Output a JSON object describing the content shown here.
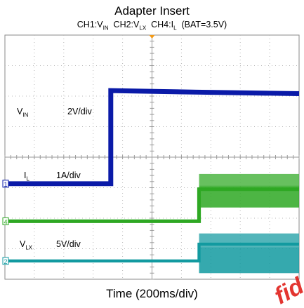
{
  "title": "Adapter Insert",
  "subtitle": {
    "ch1": "CH1:V",
    "ch1_sub": "IN",
    "ch2": "CH2:V",
    "ch2_sub": "LX",
    "ch4": "CH4:I",
    "ch4_sub": "L",
    "bat": "(BAT=3.5V)"
  },
  "xlabel": "Time (200ms/div)",
  "watermark": "fid",
  "channels": {
    "vin": {
      "name": "V",
      "sub": "IN",
      "scale": "2V/div",
      "marker": "1",
      "color": "#0a1aa8"
    },
    "il": {
      "name": "I",
      "sub": "L",
      "scale": "1A/div",
      "marker": "4",
      "color": "#2ea823"
    },
    "vlx": {
      "name": "V",
      "sub": "LX",
      "scale": "5V/div",
      "marker": "2",
      "color": "#129aa0"
    }
  },
  "chart_data": {
    "type": "line",
    "x_unit": "div",
    "x_divisions": 10,
    "y_divisions": 8,
    "grid": true,
    "series": [
      {
        "name": "VIN",
        "color": "#0a1aa8",
        "scale": "2V/div",
        "points": [
          [
            0,
            0
          ],
          [
            3.6,
            0
          ],
          [
            3.6,
            3.05
          ],
          [
            6.5,
            3.0
          ],
          [
            10,
            2.95
          ]
        ],
        "noise": 0.08
      },
      {
        "name": "IL",
        "color": "#2ea823",
        "scale": "1A/div",
        "points": [
          [
            0,
            0
          ],
          [
            6.6,
            0
          ],
          [
            6.6,
            1.05
          ],
          [
            10,
            1.05
          ]
        ],
        "band": [
          6.6,
          10,
          0.45,
          1.55
        ],
        "noise": 0.06
      },
      {
        "name": "VLX",
        "color": "#129aa0",
        "scale": "5V/div",
        "points": [
          [
            0,
            0
          ],
          [
            6.6,
            0
          ],
          [
            6.6,
            0.55
          ],
          [
            10,
            0.55
          ]
        ],
        "band": [
          6.6,
          10,
          -0.4,
          0.9
        ],
        "noise": 0.05
      }
    ]
  }
}
